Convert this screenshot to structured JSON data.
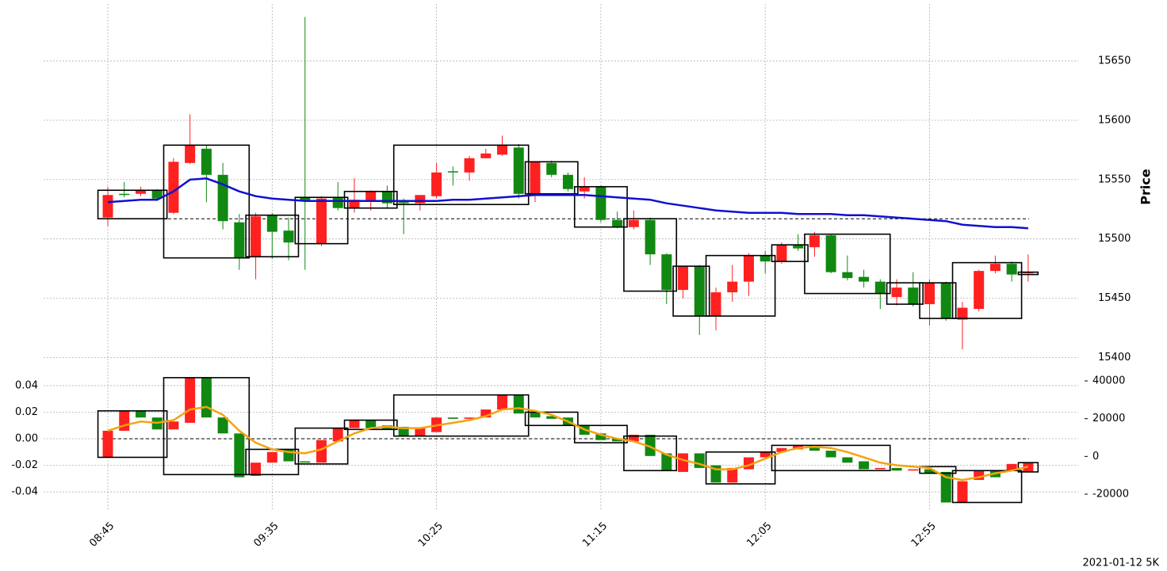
{
  "chart_data": [
    {
      "type": "candlestick",
      "ylabel": "Price",
      "ylim": [
        15391,
        15698
      ],
      "yticks": [
        15400,
        15450,
        15500,
        15550,
        15600,
        15650
      ],
      "grid": true,
      "up_color": "#ff2020",
      "down_color": "#118811",
      "hline": 15517,
      "open": [
        15518,
        15538,
        15538,
        15541,
        15522,
        15564,
        15576,
        15554,
        15514,
        15485,
        15520,
        15507,
        15535,
        15496,
        15535,
        15526,
        15532,
        15540,
        15531,
        15530,
        15536,
        15557,
        15556,
        15568,
        15571,
        15577,
        15538,
        15564,
        15554,
        15540,
        15544,
        15516,
        15510,
        15516,
        15487,
        15457,
        15477,
        15435,
        15455,
        15464,
        15486,
        15481,
        15495,
        15493,
        15503,
        15472,
        15468,
        15464,
        15451,
        15459,
        15445,
        15463,
        15432,
        15441,
        15473,
        15479,
        15471
      ],
      "high": [
        15544,
        15548,
        15544,
        15542,
        15568,
        15605,
        15579,
        15564,
        15521,
        15522,
        15522,
        15518,
        15687,
        15536,
        15548,
        15551,
        15541,
        15545,
        15534,
        15537,
        15564,
        15561,
        15570,
        15576,
        15587,
        15580,
        15565,
        15566,
        15556,
        15552,
        15545,
        15523,
        15524,
        15518,
        15488,
        15477,
        15478,
        15459,
        15478,
        15488,
        15490,
        15497,
        15504,
        15506,
        15504,
        15486,
        15474,
        15466,
        15466,
        15472,
        15466,
        15464,
        15447,
        15474,
        15486,
        15481,
        15487
      ],
      "low": [
        15511,
        15535,
        15536,
        15532,
        15521,
        15563,
        15531,
        15508,
        15474,
        15466,
        15483,
        15482,
        15474,
        15494,
        15524,
        15522,
        15524,
        15526,
        15504,
        15524,
        15534,
        15545,
        15549,
        15568,
        15570,
        15534,
        15531,
        15552,
        15540,
        15534,
        15514,
        15509,
        15508,
        15478,
        15445,
        15450,
        15419,
        15423,
        15447,
        15452,
        15471,
        15479,
        15490,
        15485,
        15471,
        15465,
        15459,
        15441,
        15444,
        15443,
        15427,
        15431,
        15407,
        15439,
        15471,
        15464,
        15464
      ],
      "close": [
        15537,
        15537,
        15541,
        15534,
        15565,
        15579,
        15554,
        15515,
        15484,
        15519,
        15506,
        15497,
        15532,
        15534,
        15526,
        15533,
        15540,
        15530,
        15530,
        15537,
        15556,
        15556,
        15568,
        15572,
        15579,
        15538,
        15565,
        15554,
        15542,
        15544,
        15516,
        15510,
        15516,
        15487,
        15457,
        15477,
        15435,
        15455,
        15464,
        15486,
        15481,
        15495,
        15492,
        15503,
        15472,
        15467,
        15464,
        15454,
        15459,
        15445,
        15463,
        15433,
        15442,
        15473,
        15479,
        15470,
        15472
      ],
      "series": [
        {
          "color": "#1010d0",
          "values": [
            15531,
            15532,
            15533,
            15533,
            15540,
            15550,
            15551,
            15546,
            15540,
            15536,
            15534,
            15533,
            15532,
            15532,
            15532,
            15532,
            15532,
            15532,
            15532,
            15532,
            15532,
            15533,
            15533,
            15534,
            15535,
            15536,
            15537,
            15537,
            15537,
            15537,
            15536,
            15535,
            15534,
            15533,
            15530,
            15528,
            15526,
            15524,
            15523,
            15522,
            15522,
            15522,
            15521,
            15521,
            15521,
            15520,
            15520,
            15519,
            15518,
            15517,
            15516,
            15515,
            15512,
            15511,
            15510,
            15510,
            15509
          ]
        }
      ],
      "boxes": [
        {
          "start": 0,
          "end": 3,
          "top": 15541,
          "bottom": 15517
        },
        {
          "start": 4,
          "end": 8,
          "top": 15579,
          "bottom": 15484
        },
        {
          "start": 9,
          "end": 11,
          "top": 15520,
          "bottom": 15485
        },
        {
          "start": 12,
          "end": 14,
          "top": 15535,
          "bottom": 15496
        },
        {
          "start": 15,
          "end": 17,
          "top": 15540,
          "bottom": 15526
        },
        {
          "start": 18,
          "end": 25,
          "top": 15579,
          "bottom": 15529
        },
        {
          "start": 26,
          "end": 28,
          "top": 15565,
          "bottom": 15538
        },
        {
          "start": 29,
          "end": 31,
          "top": 15544,
          "bottom": 15510
        },
        {
          "start": 32,
          "end": 34,
          "top": 15517,
          "bottom": 15456
        },
        {
          "start": 35,
          "end": 36,
          "top": 15477,
          "bottom": 15435
        },
        {
          "start": 37,
          "end": 40,
          "top": 15486,
          "bottom": 15435
        },
        {
          "start": 41,
          "end": 42,
          "top": 15495,
          "bottom": 15481
        },
        {
          "start": 43,
          "end": 47,
          "top": 15504,
          "bottom": 15454
        },
        {
          "start": 48,
          "end": 49,
          "top": 15463,
          "bottom": 15445
        },
        {
          "start": 50,
          "end": 51,
          "top": 15463,
          "bottom": 15433
        },
        {
          "start": 52,
          "end": 55,
          "top": 15480,
          "bottom": 15433
        },
        {
          "start": 56,
          "end": 56,
          "top": 15472,
          "bottom": 15470
        }
      ]
    },
    {
      "type": "candlestick",
      "ylim": [
        -0.0513,
        0.0501
      ],
      "yticks": [
        -0.04,
        -0.02,
        {
          "value": 0,
          "label": "0.00"
        },
        0.02,
        0.04
      ],
      "y2lim": [
        -26713,
        44616
      ],
      "y2ticks": [
        -20000,
        0,
        20000,
        40000
      ],
      "grid": true,
      "up_color": "#ff2020",
      "down_color": "#118811",
      "hline": 0,
      "categories": [
        "08:45",
        null,
        null,
        null,
        null,
        null,
        null,
        null,
        null,
        null,
        "09:35",
        null,
        null,
        null,
        null,
        null,
        null,
        null,
        null,
        null,
        "10:25",
        null,
        null,
        null,
        null,
        null,
        null,
        null,
        null,
        null,
        "11:15",
        null,
        null,
        null,
        null,
        null,
        null,
        null,
        null,
        null,
        "12:05",
        null,
        null,
        null,
        null,
        null,
        null,
        null,
        null,
        null,
        "12:55",
        null,
        null,
        null,
        null,
        null,
        null
      ],
      "open": [
        -0.014,
        0.006,
        0.021,
        0.016,
        0.007,
        0.012,
        0.046,
        0.016,
        0.004,
        -0.028,
        -0.018,
        -0.008,
        -0.017,
        -0.018,
        -0.002,
        0.008,
        0.014,
        0.01,
        0.009,
        0.002,
        0.005,
        0.016,
        0.015,
        0.016,
        0.022,
        0.033,
        0.02,
        0.017,
        0.016,
        0.01,
        0.004,
        0.0,
        -0.002,
        0.003,
        -0.011,
        -0.025,
        -0.011,
        -0.02,
        -0.033,
        -0.023,
        -0.014,
        -0.01,
        -0.008,
        -0.005,
        -0.009,
        -0.014,
        -0.017,
        -0.023,
        -0.022,
        -0.024,
        -0.023,
        -0.025,
        -0.048,
        -0.031,
        -0.024,
        -0.024,
        -0.025
      ],
      "close": [
        0.006,
        0.021,
        0.016,
        0.007,
        0.013,
        0.046,
        0.016,
        0.004,
        -0.029,
        -0.018,
        -0.01,
        -0.017,
        -0.018,
        -0.001,
        0.008,
        0.014,
        0.008,
        0.007,
        0.002,
        0.008,
        0.016,
        0.015,
        0.016,
        0.022,
        0.033,
        0.019,
        0.016,
        0.015,
        0.01,
        0.003,
        -0.001,
        -0.002,
        0.003,
        -0.013,
        -0.024,
        -0.011,
        -0.022,
        -0.033,
        -0.022,
        -0.014,
        -0.01,
        -0.007,
        -0.005,
        -0.009,
        -0.014,
        -0.018,
        -0.023,
        -0.022,
        -0.024,
        -0.023,
        -0.026,
        -0.048,
        -0.032,
        -0.024,
        -0.029,
        -0.019,
        -0.018
      ],
      "series": [
        {
          "color": "#f5a30f",
          "values": [
            0.006,
            0.01,
            0.013,
            0.012,
            0.014,
            0.022,
            0.024,
            0.018,
            0.006,
            -0.003,
            -0.008,
            -0.01,
            -0.011,
            -0.008,
            -0.002,
            0.004,
            0.008,
            0.009,
            0.008,
            0.008,
            0.01,
            0.012,
            0.014,
            0.017,
            0.022,
            0.023,
            0.021,
            0.018,
            0.013,
            0.007,
            0.003,
            0.0,
            -0.002,
            -0.006,
            -0.012,
            -0.016,
            -0.019,
            -0.023,
            -0.023,
            -0.02,
            -0.015,
            -0.01,
            -0.007,
            -0.006,
            -0.007,
            -0.01,
            -0.014,
            -0.018,
            -0.02,
            -0.021,
            -0.022,
            -0.029,
            -0.031,
            -0.029,
            -0.026,
            -0.024,
            -0.021
          ]
        }
      ],
      "boxes": [
        {
          "start": 0,
          "end": 3,
          "top": 0.021,
          "bottom": -0.014
        },
        {
          "start": 4,
          "end": 8,
          "top": 0.046,
          "bottom": -0.027
        },
        {
          "start": 9,
          "end": 11,
          "top": -0.008,
          "bottom": -0.027
        },
        {
          "start": 12,
          "end": 14,
          "top": 0.008,
          "bottom": -0.019
        },
        {
          "start": 15,
          "end": 17,
          "top": 0.014,
          "bottom": 0.007
        },
        {
          "start": 18,
          "end": 25,
          "top": 0.033,
          "bottom": 0.002
        },
        {
          "start": 26,
          "end": 28,
          "top": 0.02,
          "bottom": 0.01
        },
        {
          "start": 29,
          "end": 31,
          "top": 0.01,
          "bottom": -0.003
        },
        {
          "start": 32,
          "end": 34,
          "top": 0.002,
          "bottom": -0.024
        },
        {
          "start": 37,
          "end": 40,
          "top": -0.01,
          "bottom": -0.034
        },
        {
          "start": 41,
          "end": 47,
          "top": -0.005,
          "bottom": -0.024
        },
        {
          "start": 50,
          "end": 51,
          "top": -0.021,
          "bottom": -0.026
        },
        {
          "start": 52,
          "end": 55,
          "top": -0.024,
          "bottom": -0.048
        },
        {
          "start": 56,
          "end": 56,
          "top": -0.018,
          "bottom": -0.025
        }
      ]
    }
  ],
  "footnote": "2021-01-12 5K"
}
